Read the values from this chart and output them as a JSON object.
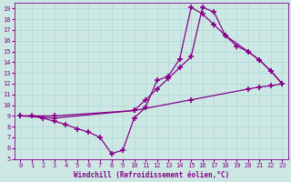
{
  "xlabel": "Windchill (Refroidissement éolien,°C)",
  "bg_color": "#cde8e4",
  "line_color": "#880088",
  "grid_color": "#aad8d4",
  "xlim": [
    -0.5,
    23.5
  ],
  "ylim": [
    5,
    19.5
  ],
  "xticks": [
    0,
    1,
    2,
    3,
    4,
    5,
    6,
    7,
    8,
    9,
    10,
    11,
    12,
    13,
    14,
    15,
    16,
    17,
    18,
    19,
    20,
    21,
    22,
    23
  ],
  "yticks": [
    5,
    6,
    7,
    8,
    9,
    10,
    11,
    12,
    13,
    14,
    15,
    16,
    17,
    18,
    19
  ],
  "line1_x": [
    0,
    1,
    2,
    3,
    4,
    5,
    6,
    7,
    8,
    9,
    10,
    11,
    12,
    13,
    14,
    15,
    16,
    17,
    18,
    19,
    20,
    21,
    22,
    23
  ],
  "line1_y": [
    9.0,
    9.0,
    8.8,
    8.5,
    8.2,
    7.8,
    7.5,
    7.0,
    5.5,
    5.8,
    8.8,
    9.8,
    12.3,
    12.7,
    14.3,
    19.1,
    18.5,
    17.5,
    16.5,
    15.5,
    15.0,
    14.2,
    13.2,
    12.0
  ],
  "line2_x": [
    0,
    3,
    10,
    15,
    20,
    21,
    22,
    23
  ],
  "line2_y": [
    9.0,
    8.8,
    9.5,
    10.5,
    11.5,
    11.7,
    11.8,
    12.0
  ],
  "line3_x": [
    0,
    3,
    10,
    11,
    12,
    13,
    14,
    15,
    16,
    17,
    18,
    20,
    21,
    22,
    23
  ],
  "line3_y": [
    9.0,
    9.0,
    9.5,
    10.5,
    11.5,
    12.5,
    13.5,
    14.5,
    19.1,
    18.7,
    16.5,
    15.0,
    14.2,
    13.2,
    12.0
  ]
}
